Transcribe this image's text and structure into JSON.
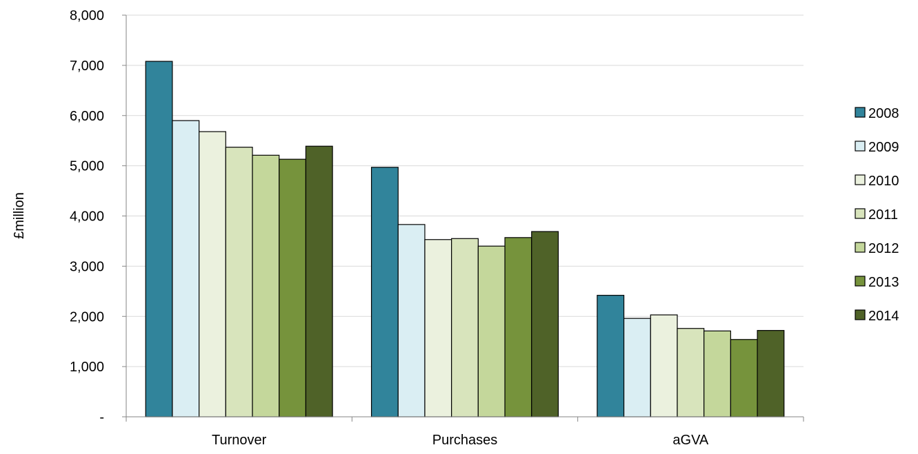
{
  "chart_data": {
    "type": "bar",
    "title": "",
    "xlabel": "",
    "ylabel": "£million",
    "ylim": [
      0,
      8000
    ],
    "yticks": [
      0,
      1000,
      2000,
      3000,
      4000,
      5000,
      6000,
      7000,
      8000
    ],
    "ytick_labels": [
      "-",
      "1,000",
      "2,000",
      "3,000",
      "4,000",
      "5,000",
      "6,000",
      "7,000",
      "8,000"
    ],
    "grid": true,
    "legend_position": "right",
    "categories": [
      "Turnover",
      "Purchases",
      "aGVA"
    ],
    "series": [
      {
        "name": "2008",
        "color": "#31849b",
        "values": [
          7080,
          4970,
          2420
        ]
      },
      {
        "name": "2009",
        "color": "#daeef3",
        "values": [
          5900,
          3830,
          1960
        ]
      },
      {
        "name": "2010",
        "color": "#ebf1de",
        "values": [
          5680,
          3530,
          2030
        ]
      },
      {
        "name": "2011",
        "color": "#d8e4bc",
        "values": [
          5370,
          3550,
          1760
        ]
      },
      {
        "name": "2012",
        "color": "#c4d79b",
        "values": [
          5210,
          3400,
          1710
        ]
      },
      {
        "name": "2013",
        "color": "#76933c",
        "values": [
          5130,
          3570,
          1540
        ]
      },
      {
        "name": "2014",
        "color": "#4f6228",
        "values": [
          5390,
          3690,
          1720
        ]
      }
    ]
  }
}
